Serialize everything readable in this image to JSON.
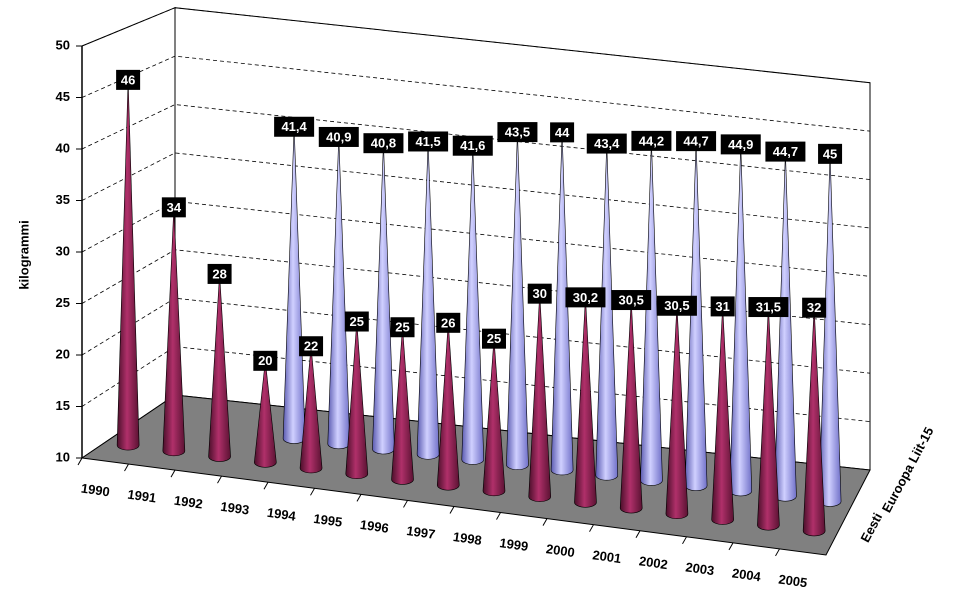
{
  "chart_data": {
    "type": "bar",
    "y_label": "kilogrammi",
    "categories": [
      "1990",
      "1991",
      "1992",
      "1993",
      "1994",
      "1995",
      "1996",
      "1997",
      "1998",
      "1999",
      "2000",
      "2001",
      "2002",
      "2003",
      "2004",
      "2005"
    ],
    "series": [
      {
        "name": "Eesti",
        "color": "#8b2252",
        "values": [
          46,
          34,
          28,
          20,
          22,
          25,
          25,
          26,
          25,
          30,
          30.2,
          30.5,
          30.5,
          31,
          31.5,
          32
        ],
        "value_labels": [
          "46",
          "34",
          "28",
          "20",
          "22",
          "25",
          "25",
          "26",
          "25",
          "30",
          "30,2",
          "30,5",
          "30,5",
          "31",
          "31,5",
          "32"
        ]
      },
      {
        "name": "Euroopa Liit-15",
        "color": "#9999ff",
        "values": [
          null,
          null,
          null,
          41.4,
          40.9,
          40.8,
          41.5,
          41.6,
          43.5,
          44,
          43.4,
          44.2,
          44.7,
          44.9,
          44.7,
          45
        ],
        "value_labels": [
          null,
          null,
          null,
          "41,4",
          "40,9",
          "40,8",
          "41,5",
          "41,6",
          "43,5",
          "44",
          "43,4",
          "44,2",
          "44,7",
          "44,9",
          "44,7",
          "45"
        ]
      }
    ],
    "ylim": [
      10,
      50
    ],
    "yticks": [
      10,
      15,
      20,
      25,
      30,
      35,
      40,
      45,
      50
    ],
    "grid": true
  }
}
